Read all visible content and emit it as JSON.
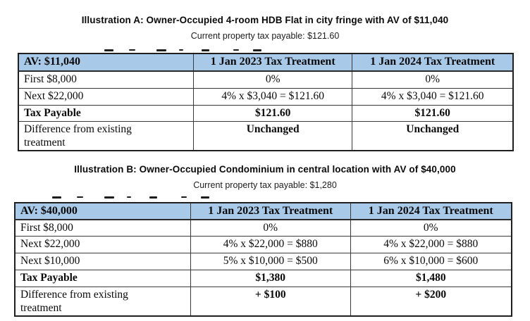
{
  "colors": {
    "header_bg": "#a9c9e9",
    "border": "#3a3a3a",
    "text": "#0a0a0a",
    "page_bg": "#ffffff"
  },
  "illustration_a": {
    "title": "Illustration A: Owner-Occupied 4-room HDB Flat in city fringe with AV of $11,040",
    "subtitle": "Current property tax payable: $121.60",
    "table": {
      "headers": [
        "AV: $11,040",
        "1 Jan 2023 Tax Treatment",
        "1 Jan 2024 Tax Treatment"
      ],
      "rows": [
        {
          "label": "First $8,000",
          "y2023": "0%",
          "y2024": "0%"
        },
        {
          "label": "Next $22,000",
          "y2023": "4% x $3,040 = $121.60",
          "y2024": "4% x $3,040 = $121.60"
        },
        {
          "label": "Tax Payable",
          "y2023": "$121.60",
          "y2024": "$121.60"
        },
        {
          "label": "Difference from existing treatment",
          "y2023": "Unchanged",
          "y2024": "Unchanged"
        }
      ]
    }
  },
  "illustration_b": {
    "title": "Illustration B: Owner-Occupied Condominium in central location with AV of $40,000",
    "subtitle": "Current property tax payable: $1,280",
    "table": {
      "headers": [
        "AV: $40,000",
        "1 Jan 2023 Tax Treatment",
        "1 Jan 2024 Tax Treatment"
      ],
      "rows": [
        {
          "label": "First $8,000",
          "y2023": "0%",
          "y2024": "0%"
        },
        {
          "label": "Next $22,000",
          "y2023": "4% x $22,000 = $880",
          "y2024": "4% x $22,000 = $880"
        },
        {
          "label": "Next $10,000",
          "y2023": "5% x $10,000 = $500",
          "y2024": "6% x $10,000 = $600"
        },
        {
          "label": "Tax Payable",
          "y2023": "$1,380",
          "y2024": "$1,480"
        },
        {
          "label": "Difference from existing treatment",
          "y2023": "+ $100",
          "y2024": "+ $200"
        }
      ]
    }
  }
}
